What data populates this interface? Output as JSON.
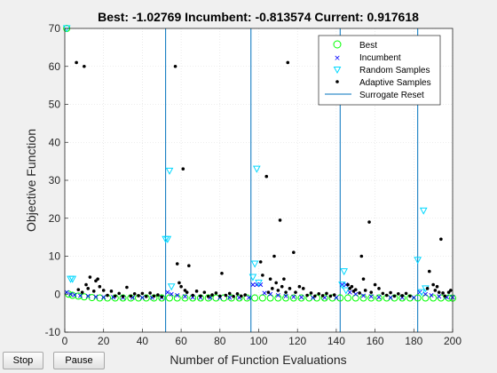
{
  "buttons": {
    "stop_label": "Stop",
    "pause_label": "Pause"
  },
  "chart_data": {
    "type": "scatter",
    "title": "Best: -1.02769 Incumbent: -0.813574 Current: 0.917618",
    "xlabel": "Number of Function Evaluations",
    "ylabel": "Objective Function",
    "xlim": [
      0,
      200
    ],
    "ylim": [
      -10,
      70
    ],
    "xticks": [
      0,
      20,
      40,
      60,
      80,
      100,
      120,
      140,
      160,
      180,
      200
    ],
    "yticks": [
      -10,
      0,
      10,
      20,
      30,
      40,
      50,
      60,
      70
    ],
    "grid": true,
    "legend_position": "top-right",
    "legend": [
      "Best",
      "Incumbent",
      "Random Samples",
      "Adaptive Samples",
      "Surrogate Reset"
    ],
    "colors": {
      "best": "#00ff00",
      "incumbent": "#0000ff",
      "random": "#00d8ff",
      "adaptive": "#000000",
      "reset": "#0072bd"
    },
    "surrogate_resets": [
      52,
      96,
      142,
      182
    ],
    "random_samples": [
      {
        "x": 1,
        "y": 70
      },
      {
        "x": 3,
        "y": 4
      },
      {
        "x": 4,
        "y": 4
      },
      {
        "x": 52,
        "y": 14.5
      },
      {
        "x": 53,
        "y": 14.5
      },
      {
        "x": 54,
        "y": 32.5
      },
      {
        "x": 55,
        "y": 2
      },
      {
        "x": 97,
        "y": 4.5
      },
      {
        "x": 98,
        "y": 8
      },
      {
        "x": 99,
        "y": 33
      },
      {
        "x": 100,
        "y": 3
      },
      {
        "x": 143,
        "y": 2.5
      },
      {
        "x": 144,
        "y": 6
      },
      {
        "x": 145,
        "y": 1
      },
      {
        "x": 182,
        "y": 9
      },
      {
        "x": 184,
        "y": 0.5
      },
      {
        "x": 185,
        "y": 22
      },
      {
        "x": 186,
        "y": 1.5
      }
    ],
    "adaptive_samples": [
      {
        "x": 6,
        "y": 61
      },
      {
        "x": 10,
        "y": 60
      },
      {
        "x": 7,
        "y": 1.2
      },
      {
        "x": 9,
        "y": 0.5
      },
      {
        "x": 11,
        "y": 2.5
      },
      {
        "x": 12,
        "y": 1.5
      },
      {
        "x": 13,
        "y": 4.5
      },
      {
        "x": 15,
        "y": 0.8
      },
      {
        "x": 16,
        "y": 3.5
      },
      {
        "x": 17,
        "y": 4
      },
      {
        "x": 18,
        "y": 2
      },
      {
        "x": 20,
        "y": 1
      },
      {
        "x": 22,
        "y": -0.3
      },
      {
        "x": 24,
        "y": 0.8
      },
      {
        "x": 26,
        "y": -0.5
      },
      {
        "x": 28,
        "y": 0.2
      },
      {
        "x": 30,
        "y": -0.6
      },
      {
        "x": 32,
        "y": 1.8
      },
      {
        "x": 34,
        "y": -0.5
      },
      {
        "x": 36,
        "y": 0.1
      },
      {
        "x": 38,
        "y": -0.4
      },
      {
        "x": 40,
        "y": 0.2
      },
      {
        "x": 42,
        "y": -0.6
      },
      {
        "x": 44,
        "y": 0.3
      },
      {
        "x": 46,
        "y": -0.5
      },
      {
        "x": 48,
        "y": -0.2
      },
      {
        "x": 50,
        "y": -0.7
      },
      {
        "x": 57,
        "y": 60
      },
      {
        "x": 58,
        "y": 8
      },
      {
        "x": 59,
        "y": 3
      },
      {
        "x": 60,
        "y": 2
      },
      {
        "x": 61,
        "y": 33
      },
      {
        "x": 62,
        "y": 1
      },
      {
        "x": 63,
        "y": 0.5
      },
      {
        "x": 64,
        "y": 7.5
      },
      {
        "x": 66,
        "y": -0.3
      },
      {
        "x": 68,
        "y": 0.8
      },
      {
        "x": 70,
        "y": -0.5
      },
      {
        "x": 72,
        "y": 0.5
      },
      {
        "x": 74,
        "y": -0.6
      },
      {
        "x": 76,
        "y": -0.2
      },
      {
        "x": 78,
        "y": 0.3
      },
      {
        "x": 80,
        "y": -0.5
      },
      {
        "x": 81,
        "y": 5.5
      },
      {
        "x": 83,
        "y": -0.3
      },
      {
        "x": 85,
        "y": 0.2
      },
      {
        "x": 87,
        "y": -0.6
      },
      {
        "x": 89,
        "y": 0.1
      },
      {
        "x": 91,
        "y": -0.5
      },
      {
        "x": 93,
        "y": -0.2
      },
      {
        "x": 101,
        "y": 8.5
      },
      {
        "x": 102,
        "y": 5
      },
      {
        "x": 104,
        "y": 31
      },
      {
        "x": 105,
        "y": 0.5
      },
      {
        "x": 106,
        "y": 4
      },
      {
        "x": 107,
        "y": 1.5
      },
      {
        "x": 108,
        "y": 10
      },
      {
        "x": 109,
        "y": 3
      },
      {
        "x": 110,
        "y": 1
      },
      {
        "x": 111,
        "y": 19.5
      },
      {
        "x": 112,
        "y": 2
      },
      {
        "x": 113,
        "y": 4
      },
      {
        "x": 114,
        "y": 0.5
      },
      {
        "x": 115,
        "y": 61
      },
      {
        "x": 116,
        "y": 1.5
      },
      {
        "x": 118,
        "y": 11
      },
      {
        "x": 119,
        "y": 0.5
      },
      {
        "x": 121,
        "y": 2
      },
      {
        "x": 123,
        "y": 1.5
      },
      {
        "x": 125,
        "y": -0.3
      },
      {
        "x": 127,
        "y": 0.3
      },
      {
        "x": 129,
        "y": -0.5
      },
      {
        "x": 131,
        "y": 0.1
      },
      {
        "x": 133,
        "y": -0.4
      },
      {
        "x": 135,
        "y": 0.2
      },
      {
        "x": 137,
        "y": -0.5
      },
      {
        "x": 139,
        "y": -0.2
      },
      {
        "x": 146,
        "y": 2.5
      },
      {
        "x": 147,
        "y": 1.5
      },
      {
        "x": 148,
        "y": 2
      },
      {
        "x": 149,
        "y": 0.8
      },
      {
        "x": 150,
        "y": 1.2
      },
      {
        "x": 152,
        "y": 0.3
      },
      {
        "x": 153,
        "y": 10
      },
      {
        "x": 154,
        "y": 4
      },
      {
        "x": 155,
        "y": 1
      },
      {
        "x": 157,
        "y": 19
      },
      {
        "x": 158,
        "y": 0.5
      },
      {
        "x": 160,
        "y": 2.5
      },
      {
        "x": 162,
        "y": 1.5
      },
      {
        "x": 164,
        "y": 0.2
      },
      {
        "x": 166,
        "y": -0.3
      },
      {
        "x": 168,
        "y": 0.4
      },
      {
        "x": 170,
        "y": -0.5
      },
      {
        "x": 172,
        "y": 0.1
      },
      {
        "x": 174,
        "y": -0.4
      },
      {
        "x": 176,
        "y": 0.2
      },
      {
        "x": 178,
        "y": -0.5
      },
      {
        "x": 187,
        "y": 1.5
      },
      {
        "x": 188,
        "y": 6
      },
      {
        "x": 190,
        "y": 2.5
      },
      {
        "x": 191,
        "y": 1
      },
      {
        "x": 192,
        "y": 2
      },
      {
        "x": 193,
        "y": 0.5
      },
      {
        "x": 194,
        "y": 14.5
      },
      {
        "x": 195,
        "y": 0.3
      },
      {
        "x": 196,
        "y": -0.5
      },
      {
        "x": 198,
        "y": 0.5
      },
      {
        "x": 199,
        "y": 1
      }
    ],
    "incumbent": [
      {
        "x": 1,
        "y": 0.5
      },
      {
        "x": 3,
        "y": 0
      },
      {
        "x": 5,
        "y": -0.2
      },
      {
        "x": 8,
        "y": -0.4
      },
      {
        "x": 12,
        "y": -0.5
      },
      {
        "x": 16,
        "y": -0.7
      },
      {
        "x": 20,
        "y": -0.8
      },
      {
        "x": 25,
        "y": -0.8
      },
      {
        "x": 30,
        "y": -0.9
      },
      {
        "x": 35,
        "y": -0.9
      },
      {
        "x": 40,
        "y": -0.9
      },
      {
        "x": 45,
        "y": -0.9
      },
      {
        "x": 50,
        "y": -0.9
      },
      {
        "x": 53,
        "y": 0.5
      },
      {
        "x": 55,
        "y": 0
      },
      {
        "x": 58,
        "y": -0.3
      },
      {
        "x": 62,
        "y": -0.6
      },
      {
        "x": 66,
        "y": -0.8
      },
      {
        "x": 70,
        "y": -0.9
      },
      {
        "x": 75,
        "y": -0.9
      },
      {
        "x": 80,
        "y": -0.9
      },
      {
        "x": 85,
        "y": -0.9
      },
      {
        "x": 90,
        "y": -0.9
      },
      {
        "x": 95,
        "y": -0.9
      },
      {
        "x": 97,
        "y": 2.5
      },
      {
        "x": 99,
        "y": 2.5
      },
      {
        "x": 101,
        "y": 2.5
      },
      {
        "x": 103,
        "y": 0.3
      },
      {
        "x": 106,
        "y": 0
      },
      {
        "x": 110,
        "y": -0.3
      },
      {
        "x": 114,
        "y": -0.5
      },
      {
        "x": 118,
        "y": -0.7
      },
      {
        "x": 122,
        "y": -0.8
      },
      {
        "x": 128,
        "y": -0.9
      },
      {
        "x": 134,
        "y": -0.9
      },
      {
        "x": 140,
        "y": -0.9
      },
      {
        "x": 143,
        "y": 2.5
      },
      {
        "x": 145,
        "y": 2.5
      },
      {
        "x": 147,
        "y": 0.5
      },
      {
        "x": 150,
        "y": 0
      },
      {
        "x": 154,
        "y": -0.4
      },
      {
        "x": 158,
        "y": -0.6
      },
      {
        "x": 162,
        "y": -0.8
      },
      {
        "x": 168,
        "y": -0.9
      },
      {
        "x": 174,
        "y": -0.9
      },
      {
        "x": 180,
        "y": -0.9
      },
      {
        "x": 183,
        "y": 0.5
      },
      {
        "x": 186,
        "y": 0
      },
      {
        "x": 189,
        "y": -0.3
      },
      {
        "x": 193,
        "y": -0.6
      },
      {
        "x": 197,
        "y": -0.8
      },
      {
        "x": 200,
        "y": -0.8
      }
    ],
    "best": [
      {
        "x": 1,
        "y": 70
      },
      {
        "x": 2,
        "y": 0
      },
      {
        "x": 4,
        "y": -0.3
      },
      {
        "x": 7,
        "y": -0.5
      },
      {
        "x": 10,
        "y": -0.7
      },
      {
        "x": 14,
        "y": -0.9
      },
      {
        "x": 18,
        "y": -1
      },
      {
        "x": 22,
        "y": -1
      },
      {
        "x": 26,
        "y": -1
      },
      {
        "x": 30,
        "y": -1
      },
      {
        "x": 34,
        "y": -1
      },
      {
        "x": 38,
        "y": -1
      },
      {
        "x": 42,
        "y": -1
      },
      {
        "x": 46,
        "y": -1
      },
      {
        "x": 50,
        "y": -1
      },
      {
        "x": 54,
        "y": -1
      },
      {
        "x": 58,
        "y": -1
      },
      {
        "x": 62,
        "y": -1
      },
      {
        "x": 66,
        "y": -1
      },
      {
        "x": 70,
        "y": -1
      },
      {
        "x": 74,
        "y": -1
      },
      {
        "x": 78,
        "y": -1
      },
      {
        "x": 82,
        "y": -1
      },
      {
        "x": 86,
        "y": -1
      },
      {
        "x": 90,
        "y": -1
      },
      {
        "x": 94,
        "y": -1
      },
      {
        "x": 98,
        "y": -1
      },
      {
        "x": 102,
        "y": -1
      },
      {
        "x": 106,
        "y": -1
      },
      {
        "x": 110,
        "y": -1
      },
      {
        "x": 114,
        "y": -1
      },
      {
        "x": 118,
        "y": -1
      },
      {
        "x": 122,
        "y": -1
      },
      {
        "x": 126,
        "y": -1
      },
      {
        "x": 130,
        "y": -1
      },
      {
        "x": 134,
        "y": -1
      },
      {
        "x": 138,
        "y": -1
      },
      {
        "x": 142,
        "y": -1
      },
      {
        "x": 146,
        "y": -1
      },
      {
        "x": 150,
        "y": -1
      },
      {
        "x": 154,
        "y": -1
      },
      {
        "x": 158,
        "y": -1
      },
      {
        "x": 162,
        "y": -1
      },
      {
        "x": 166,
        "y": -1
      },
      {
        "x": 170,
        "y": -1
      },
      {
        "x": 174,
        "y": -1
      },
      {
        "x": 178,
        "y": -1
      },
      {
        "x": 182,
        "y": -1
      },
      {
        "x": 186,
        "y": -1
      },
      {
        "x": 190,
        "y": -1
      },
      {
        "x": 194,
        "y": -1
      },
      {
        "x": 198,
        "y": -1
      },
      {
        "x": 200,
        "y": -1.03
      }
    ]
  }
}
